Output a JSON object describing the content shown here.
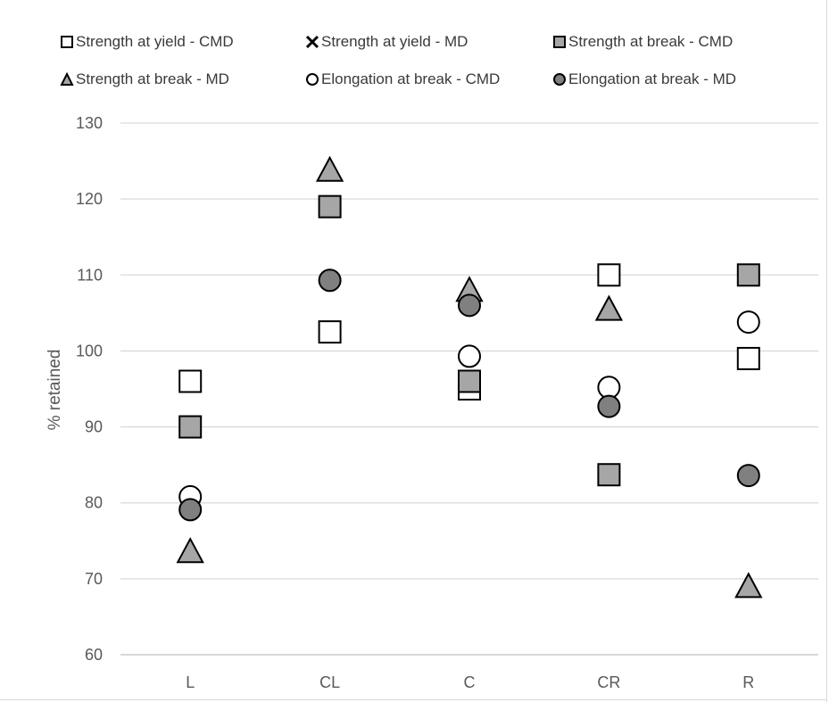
{
  "chart_data": {
    "type": "scatter",
    "title": "",
    "xlabel": "",
    "ylabel": "% retained",
    "ylim": [
      60,
      130
    ],
    "ytick_step": 10,
    "grid": true,
    "legend_position": "top",
    "categories": [
      "L",
      "CL",
      "C",
      "CR",
      "R"
    ],
    "series": [
      {
        "name": "Strength at yield - CMD",
        "marker": "square",
        "fill": "#ffffff",
        "stroke": "#000000",
        "values": [
          96,
          102.5,
          95,
          110,
          99
        ]
      },
      {
        "name": "Strength at yield - MD",
        "marker": "x",
        "fill": "#000000",
        "stroke": "#000000",
        "values": [
          null,
          null,
          null,
          null,
          null
        ]
      },
      {
        "name": "Strength at break - CMD",
        "marker": "square",
        "fill": "#a6a6a6",
        "stroke": "#000000",
        "values": [
          90,
          119,
          96,
          83.7,
          110
        ]
      },
      {
        "name": "Strength at break - MD",
        "marker": "triangle",
        "fill": "#a6a6a6",
        "stroke": "#000000",
        "values": [
          73.6,
          123.8,
          108,
          105.5,
          69
        ]
      },
      {
        "name": "Elongation at break - CMD",
        "marker": "circle",
        "fill": "#ffffff",
        "stroke": "#000000",
        "values": [
          80.8,
          null,
          99.3,
          95.2,
          103.8
        ]
      },
      {
        "name": "Elongation at break - MD",
        "marker": "circle",
        "fill": "#808080",
        "stroke": "#000000",
        "values": [
          79.1,
          109.3,
          106,
          92.7,
          83.6
        ]
      }
    ]
  }
}
